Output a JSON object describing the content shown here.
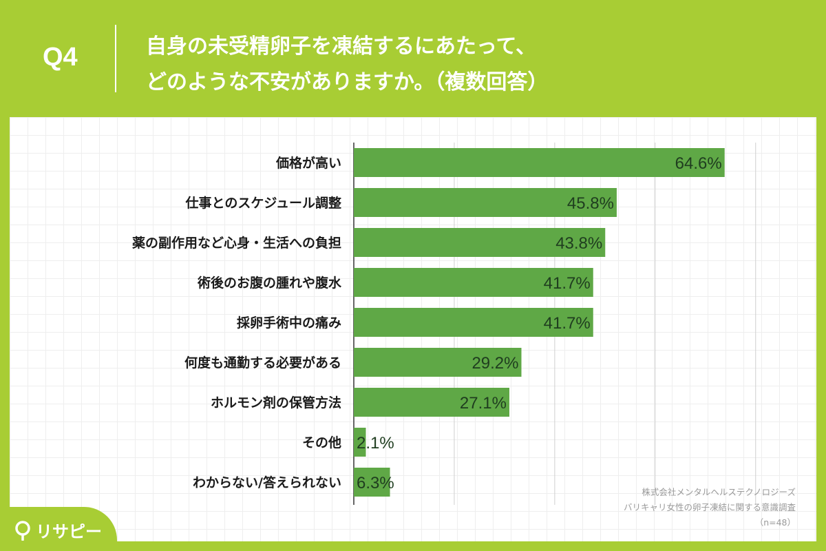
{
  "header": {
    "question_label": "Q4",
    "title_line1": "自身の未受精卵子を凍結するにあたって、",
    "title_line2": "どのような不安がありますか。（複数回答）"
  },
  "source": {
    "line1": "株式会社メンタルヘルステクノロジーズ",
    "line2": "バリキャリ女性の卵子凍結に関する意識調査",
    "line3": "（n=48）"
  },
  "logo": {
    "text": "リサピー",
    "icon": "location-pin-icon"
  },
  "colors": {
    "background": "#a8cd34",
    "bar": "#5fa846",
    "label_text": "#1a1a1a",
    "value_text": "#1f3d1f"
  },
  "chart_data": {
    "type": "bar",
    "orientation": "horizontal",
    "categories": [
      "価格が高い",
      "仕事とのスケジュール調整",
      "薬の副作用など心身・生活への負担",
      "術後のお腹の腫れや腹水",
      "採卵手術中の痛み",
      "何度も通勤する必要がある",
      "ホルモン剤の保管方法",
      "その他",
      "わからない/答えられない"
    ],
    "values": [
      64.6,
      45.8,
      43.8,
      41.7,
      41.7,
      29.2,
      27.1,
      2.1,
      6.3
    ],
    "value_labels": [
      "64.6%",
      "45.8%",
      "43.8%",
      "41.7%",
      "41.7%",
      "29.2%",
      "27.1%",
      "2.1%",
      "6.3%"
    ],
    "xlim": [
      0,
      70
    ],
    "gridlines": [
      0,
      17.5,
      35,
      52.5,
      70
    ],
    "title": "",
    "xlabel": "",
    "ylabel": ""
  }
}
